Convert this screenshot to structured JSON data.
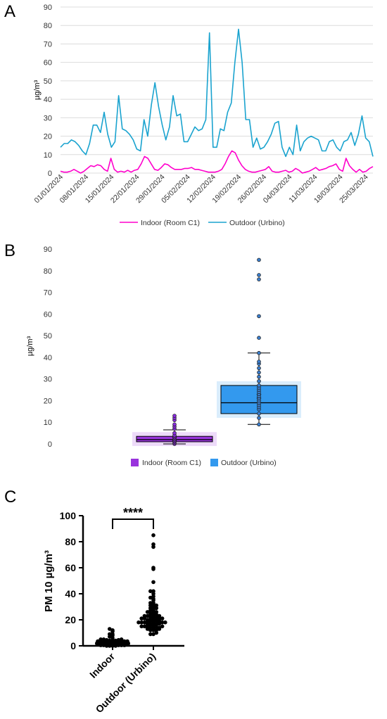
{
  "panels": {
    "a": "A",
    "b": "B",
    "c": "C"
  },
  "chart_data": [
    {
      "type": "line",
      "ylabel": "µg/m³",
      "ylim": [
        0,
        90
      ],
      "yticks": [
        0,
        10,
        20,
        30,
        40,
        50,
        60,
        70,
        80,
        90
      ],
      "grid": true,
      "legend_position": "bottom",
      "x_tick_labels": [
        "01/01/2024",
        "08/01/2024",
        "15/01/2024",
        "22/01/2024",
        "29/01/2024",
        "05/02/2024",
        "12/02/2024",
        "19/02/2024",
        "26/02/2024",
        "04/03/2024",
        "11/03/2024",
        "18/03/2024",
        "25/03/2024"
      ],
      "series": [
        {
          "name": "Indoor (Room C1)",
          "color": "#ff00cc",
          "values": [
            1,
            0.5,
            0.5,
            1,
            2,
            1,
            0,
            1,
            2.5,
            4,
            3.5,
            4.5,
            4,
            2,
            1,
            8,
            2,
            0.5,
            1,
            0.5,
            1.5,
            0.5,
            1.5,
            2,
            5,
            9,
            8,
            5,
            2,
            1.5,
            3,
            5,
            4.5,
            3,
            2,
            2,
            2,
            2.5,
            2.5,
            3,
            2,
            2,
            1.5,
            1,
            0.5,
            0.5,
            0.5,
            1,
            2,
            5,
            9,
            12,
            11,
            7,
            4,
            2,
            1,
            0.5,
            0.5,
            1,
            1.5,
            2,
            3.5,
            1,
            0.5,
            0.5,
            1,
            1.5,
            0.5,
            1,
            2.5,
            1.5,
            0,
            0.5,
            1,
            2,
            3,
            1.5,
            2,
            2.5,
            3.5,
            4,
            5,
            2,
            1,
            8,
            4,
            2,
            0.5,
            2,
            0.5,
            1,
            2.5,
            3.5
          ]
        },
        {
          "name": "Outdoor (Urbino)",
          "color": "#1aa3cf",
          "values": [
            14,
            16,
            16,
            18,
            17,
            15,
            12,
            10,
            16,
            26,
            26,
            22,
            33,
            21,
            14,
            17,
            42,
            24,
            23,
            21,
            18,
            13,
            12,
            29,
            20,
            37,
            49,
            36,
            26,
            18,
            25,
            42,
            31,
            32,
            17,
            17,
            21,
            25,
            23,
            24,
            29,
            76,
            14,
            14,
            24,
            23,
            33,
            38,
            60,
            78,
            60,
            29,
            29,
            14,
            19,
            13,
            14,
            17,
            21,
            27,
            28,
            14,
            9,
            14,
            10,
            26,
            12,
            17,
            19,
            20,
            19,
            18,
            12,
            12,
            17,
            18,
            14,
            12,
            17,
            18,
            22,
            15,
            21,
            31,
            19,
            17,
            9
          ]
        }
      ]
    },
    {
      "type": "box",
      "ylabel": "µg/m³",
      "ylim": [
        0,
        90
      ],
      "yticks": [
        0,
        10,
        20,
        30,
        40,
        50,
        60,
        70,
        80,
        90
      ],
      "legend_position": "bottom",
      "series": [
        {
          "name": "Indoor (Room C1)",
          "color": "#9933dd",
          "whisker_low": 0,
          "q1": 1,
          "median": 2,
          "q3": 3.5,
          "whisker_high": 6.5,
          "mean": 2.3,
          "points": [
            0,
            0.5,
            1,
            1.5,
            2,
            2.5,
            3,
            3.5,
            4,
            5,
            7,
            8,
            9,
            11,
            12,
            13
          ]
        },
        {
          "name": "Outdoor (Urbino)",
          "color": "#3399ee",
          "whisker_low": 9,
          "q1": 14,
          "median": 19,
          "q3": 27,
          "whisker_high": 42,
          "mean": 22,
          "points": [
            9,
            12,
            14,
            16,
            17,
            18,
            19,
            20,
            21,
            22,
            23,
            24,
            25,
            26,
            27,
            29,
            31,
            33,
            35,
            37,
            38,
            42,
            49,
            59,
            76,
            78,
            85
          ]
        }
      ]
    },
    {
      "type": "scatter",
      "ylabel": "PM 10 µg/m³",
      "ylim": [
        0,
        100
      ],
      "yticks": [
        0,
        20,
        40,
        60,
        80,
        100
      ],
      "categories": [
        "Indoor",
        "Outdoor (Urbino)"
      ],
      "significance": "****",
      "series": [
        {
          "name": "Indoor",
          "values": [
            0,
            0,
            0,
            0,
            0.5,
            0.5,
            0.5,
            0.5,
            0.5,
            1,
            1,
            1,
            1,
            1,
            1,
            1,
            1,
            1.5,
            1.5,
            1.5,
            1.5,
            1.5,
            2,
            2,
            2,
            2,
            2,
            2,
            2,
            2.5,
            2.5,
            2.5,
            2.5,
            3,
            3,
            3,
            3,
            3.5,
            3.5,
            3.5,
            4,
            4,
            4,
            4.5,
            4.5,
            5,
            5,
            5,
            6,
            7,
            8,
            9,
            9,
            11,
            12,
            13
          ]
        },
        {
          "name": "Outdoor (Urbino)",
          "values": [
            9,
            9,
            10,
            12,
            12,
            12,
            13,
            13,
            14,
            14,
            14,
            14,
            14,
            15,
            15,
            15,
            16,
            16,
            16,
            16,
            17,
            17,
            17,
            17,
            17,
            18,
            18,
            18,
            18,
            18,
            19,
            19,
            19,
            19,
            19,
            20,
            20,
            20,
            20,
            21,
            21,
            21,
            21,
            22,
            22,
            22,
            23,
            23,
            23,
            24,
            24,
            24,
            25,
            25,
            26,
            26,
            27,
            27,
            28,
            29,
            29,
            30,
            31,
            31,
            32,
            33,
            33,
            35,
            36,
            37,
            38,
            40,
            42,
            42,
            49,
            59,
            60,
            76,
            78,
            85
          ]
        }
      ]
    }
  ]
}
